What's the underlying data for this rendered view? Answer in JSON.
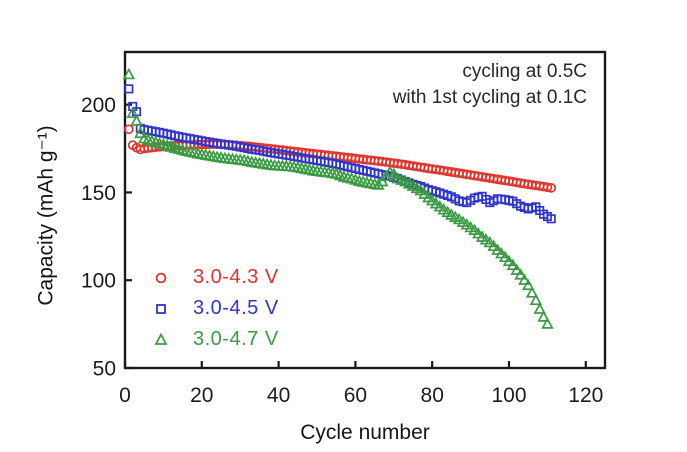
{
  "chart_data": {
    "type": "scatter",
    "title": "",
    "xlabel": "Cycle number",
    "ylabel": "Capacity (mAh g⁻¹)",
    "xlim": [
      0,
      125
    ],
    "ylim": [
      50,
      230
    ],
    "xticks": [
      0,
      20,
      40,
      60,
      80,
      100,
      120
    ],
    "yticks": [
      50,
      100,
      150,
      200
    ],
    "grid": false,
    "legend_position": "lower-left-inside",
    "annotation": [
      "cycling at 0.5C",
      "with 1st cycling at 0.1C"
    ],
    "axis_color": "#1a1a1a",
    "tick_label_color": "#1c1c1c",
    "marker_step_cycles": 1,
    "series": [
      {
        "name": "3.0-4.3 V",
        "marker": "circle",
        "color": "#e0342c",
        "points": [
          [
            1,
            186
          ],
          [
            2,
            177
          ],
          [
            3,
            175.5
          ],
          [
            4,
            174.5
          ],
          [
            5,
            175
          ],
          [
            7,
            175.5
          ],
          [
            9,
            176
          ],
          [
            11,
            176.3
          ],
          [
            13,
            176.6
          ],
          [
            15,
            176.9
          ],
          [
            17,
            177.1
          ],
          [
            19,
            177.3
          ],
          [
            21,
            177.4
          ],
          [
            23,
            177.5
          ],
          [
            25,
            177.4
          ],
          [
            27,
            177.2
          ],
          [
            29,
            176.9
          ],
          [
            31,
            176.5
          ],
          [
            33,
            176.1
          ],
          [
            35,
            175.6
          ],
          [
            37,
            175.1
          ],
          [
            39,
            174.6
          ],
          [
            41,
            174.1
          ],
          [
            43,
            173.6
          ],
          [
            45,
            173.1
          ],
          [
            47,
            172.6
          ],
          [
            49,
            172.1
          ],
          [
            51,
            171.6
          ],
          [
            53,
            171.1
          ],
          [
            55,
            170.6
          ],
          [
            57,
            170.1
          ],
          [
            59,
            169.6
          ],
          [
            61,
            169.1
          ],
          [
            63,
            168.6
          ],
          [
            65,
            168.1
          ],
          [
            67,
            167.6
          ],
          [
            69,
            167
          ],
          [
            71,
            166.4
          ],
          [
            73,
            165.8
          ],
          [
            75,
            165.1
          ],
          [
            77,
            164.4
          ],
          [
            79,
            163.7
          ],
          [
            81,
            163.1
          ],
          [
            83,
            162.4
          ],
          [
            85,
            161.7
          ],
          [
            87,
            161
          ],
          [
            89,
            160.3
          ],
          [
            91,
            159.6
          ],
          [
            93,
            158.9
          ],
          [
            95,
            158.2
          ],
          [
            97,
            157.5
          ],
          [
            99,
            156.8
          ],
          [
            101,
            156.1
          ],
          [
            103,
            155.3
          ],
          [
            105,
            154.6
          ],
          [
            107,
            154
          ],
          [
            109,
            153.3
          ],
          [
            111,
            152.6
          ]
        ]
      },
      {
        "name": "3.0-4.5 V",
        "marker": "square",
        "color": "#3036cb",
        "points": [
          [
            1,
            209
          ],
          [
            2,
            199
          ],
          [
            3,
            196
          ],
          [
            4,
            186.5
          ],
          [
            5,
            185.8
          ],
          [
            7,
            185
          ],
          [
            9,
            184.2
          ],
          [
            11,
            183.3
          ],
          [
            13,
            182.3
          ],
          [
            15,
            181.4
          ],
          [
            17,
            180.6
          ],
          [
            19,
            179.8
          ],
          [
            21,
            179
          ],
          [
            23,
            178.3
          ],
          [
            25,
            177.6
          ],
          [
            27,
            177
          ],
          [
            29,
            176.3
          ],
          [
            31,
            175.5
          ],
          [
            33,
            174.6
          ],
          [
            35,
            174
          ],
          [
            37,
            173.1
          ],
          [
            39,
            172.3
          ],
          [
            41,
            171.6
          ],
          [
            43,
            170.9
          ],
          [
            45,
            170.1
          ],
          [
            47,
            169.3
          ],
          [
            49,
            168.6
          ],
          [
            51,
            167.8
          ],
          [
            53,
            167
          ],
          [
            55,
            166.1
          ],
          [
            57,
            165.1
          ],
          [
            59,
            164.1
          ],
          [
            61,
            163.1
          ],
          [
            63,
            162.1
          ],
          [
            65,
            161.1
          ],
          [
            67,
            160.1
          ],
          [
            69,
            159.1
          ],
          [
            71,
            158
          ],
          [
            73,
            156.2
          ],
          [
            75,
            154.6
          ],
          [
            77,
            153.4
          ],
          [
            79,
            151.6
          ],
          [
            81,
            150.4
          ],
          [
            83,
            149
          ],
          [
            85,
            147.5
          ],
          [
            87,
            145.2
          ],
          [
            89,
            144.2
          ],
          [
            91,
            146.8
          ],
          [
            93,
            147.8
          ],
          [
            95,
            144.2
          ],
          [
            97,
            146.4
          ],
          [
            99,
            145.9
          ],
          [
            101,
            145
          ],
          [
            103,
            142.2
          ],
          [
            105,
            140.6
          ],
          [
            107,
            141.8
          ],
          [
            109,
            137.6
          ],
          [
            111,
            135
          ]
        ]
      },
      {
        "name": "3.0-4.7 V",
        "marker": "triangle",
        "color": "#3b9b44",
        "points": [
          [
            1,
            217
          ],
          [
            2,
            195
          ],
          [
            3,
            190.5
          ],
          [
            4,
            183.5
          ],
          [
            5,
            180.5
          ],
          [
            7,
            179
          ],
          [
            9,
            177.6
          ],
          [
            11,
            176.4
          ],
          [
            13,
            175.1
          ],
          [
            15,
            173.9
          ],
          [
            17,
            172.9
          ],
          [
            19,
            171.9
          ],
          [
            21,
            171.1
          ],
          [
            23,
            170.3
          ],
          [
            25,
            169.6
          ],
          [
            27,
            169
          ],
          [
            29,
            168.5
          ],
          [
            31,
            168
          ],
          [
            33,
            167.1
          ],
          [
            35,
            166.4
          ],
          [
            37,
            165.7
          ],
          [
            39,
            165.1
          ],
          [
            41,
            164.8
          ],
          [
            43,
            164.6
          ],
          [
            45,
            164
          ],
          [
            47,
            163.1
          ],
          [
            49,
            162.2
          ],
          [
            51,
            161.6
          ],
          [
            53,
            161.1
          ],
          [
            55,
            160.3
          ],
          [
            57,
            158.6
          ],
          [
            59,
            157.6
          ],
          [
            61,
            156.2
          ],
          [
            63,
            155.3
          ],
          [
            65,
            154.5
          ],
          [
            66,
            154.1
          ],
          [
            67,
            156
          ],
          [
            68,
            159
          ],
          [
            69,
            161.4
          ],
          [
            70,
            160.2
          ],
          [
            71,
            157.7
          ],
          [
            73,
            156
          ],
          [
            75,
            153.4
          ],
          [
            77,
            150.9
          ],
          [
            79,
            146.9
          ],
          [
            81,
            143.4
          ],
          [
            83,
            140
          ],
          [
            85,
            137
          ],
          [
            87,
            134.4
          ],
          [
            89,
            131.4
          ],
          [
            91,
            128.3
          ],
          [
            93,
            124.4
          ],
          [
            95,
            121.3
          ],
          [
            97,
            117
          ],
          [
            99,
            112.9
          ],
          [
            101,
            108.3
          ],
          [
            103,
            102.9
          ],
          [
            105,
            96.9
          ],
          [
            106,
            92.6
          ],
          [
            107,
            88.4
          ],
          [
            108,
            83.4
          ],
          [
            109,
            78.9
          ],
          [
            110,
            74.9
          ]
        ]
      }
    ]
  }
}
